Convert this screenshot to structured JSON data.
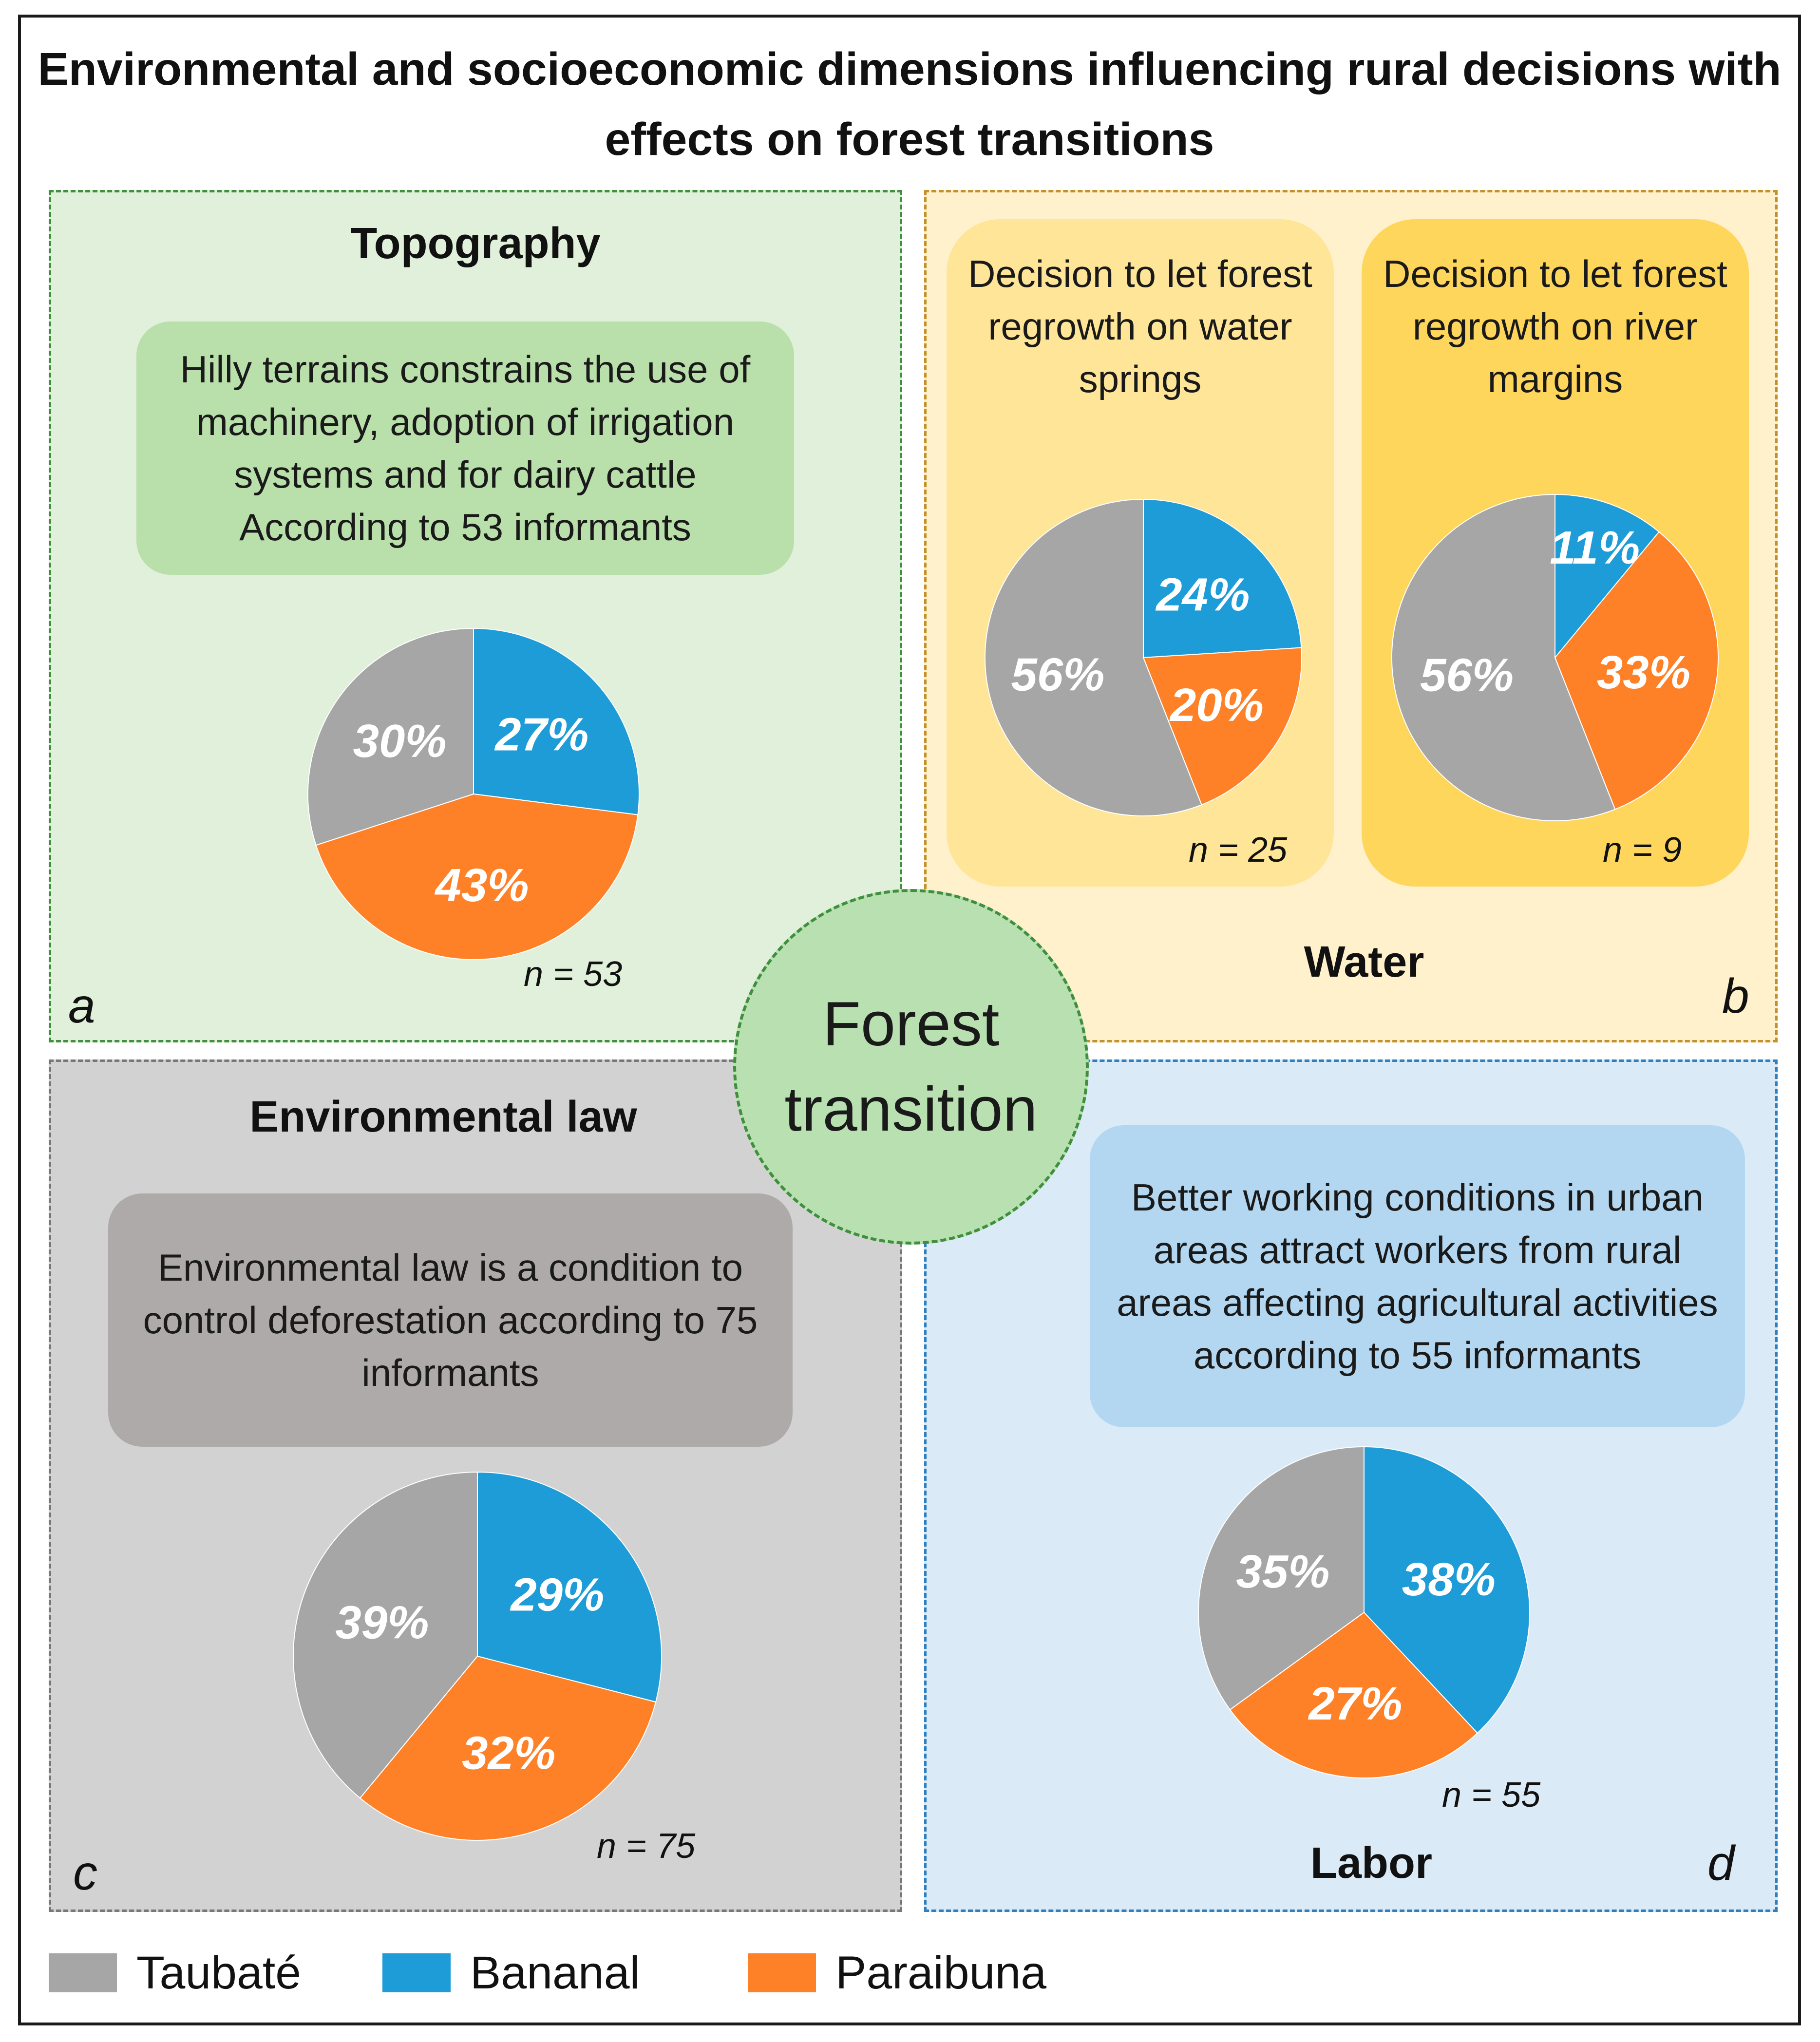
{
  "title": "Environmental and socioeconomic dimensions influencing rural decisions with effects on forest transitions",
  "center": "Forest transition",
  "colors": {
    "taubate": "#a6a6a6",
    "bananal": "#1e9cd7",
    "paraibuna": "#fe8027"
  },
  "legend": [
    {
      "label": "Taubaté",
      "color": "#a6a6a6"
    },
    {
      "label": "Bananal",
      "color": "#1e9cd7"
    },
    {
      "label": "Paraibuna",
      "color": "#fe8027"
    }
  ],
  "panels": {
    "a": {
      "letter": "a",
      "heading": "Topography",
      "statement": "Hilly terrains constrains the use of machinery, adoption of irrigation systems and for dairy cattle According to 53 informants",
      "n": "n = 53"
    },
    "b": {
      "letter": "b",
      "heading": "Water",
      "sub1": {
        "statement": "Decision to let forest regrowth on water springs",
        "n": "n = 25"
      },
      "sub2": {
        "statement": "Decision to let forest regrowth on river margins",
        "n": "n = 9"
      }
    },
    "c": {
      "letter": "c",
      "heading": "Environmental law",
      "statement": "Environmental law is a condition to control deforestation according to 75 informants",
      "n": "n = 75"
    },
    "d": {
      "letter": "d",
      "heading": "Labor",
      "statement": "Better working conditions in urban areas attract workers from rural areas affecting agricultural activities according to 55 informants",
      "n": "n = 55"
    }
  },
  "chart_data": [
    {
      "type": "pie",
      "title": "Topography",
      "n": 53,
      "labels": [
        "Bananal",
        "Paraibuna",
        "Taubaté"
      ],
      "values": [
        27,
        43,
        30
      ],
      "value_labels": [
        "27%",
        "43%",
        "30%"
      ]
    },
    {
      "type": "pie",
      "title": "Decision to let forest regrowth on water springs",
      "n": 25,
      "labels": [
        "Bananal",
        "Paraibuna",
        "Taubaté"
      ],
      "values": [
        24,
        20,
        56
      ],
      "value_labels": [
        "24%",
        "20%",
        "56%"
      ]
    },
    {
      "type": "pie",
      "title": "Decision to let forest regrowth on river margins",
      "n": 9,
      "labels": [
        "Bananal",
        "Paraibuna",
        "Taubaté"
      ],
      "values": [
        11,
        33,
        56
      ],
      "value_labels": [
        "11%",
        "33%",
        "56%"
      ]
    },
    {
      "type": "pie",
      "title": "Environmental law",
      "n": 75,
      "labels": [
        "Bananal",
        "Paraibuna",
        "Taubaté"
      ],
      "values": [
        29,
        32,
        39
      ],
      "value_labels": [
        "29%",
        "32%",
        "39%"
      ]
    },
    {
      "type": "pie",
      "title": "Labor",
      "n": 55,
      "labels": [
        "Bananal",
        "Paraibuna",
        "Taubaté"
      ],
      "values": [
        38,
        27,
        35
      ],
      "value_labels": [
        "38%",
        "27%",
        "35%"
      ]
    }
  ]
}
